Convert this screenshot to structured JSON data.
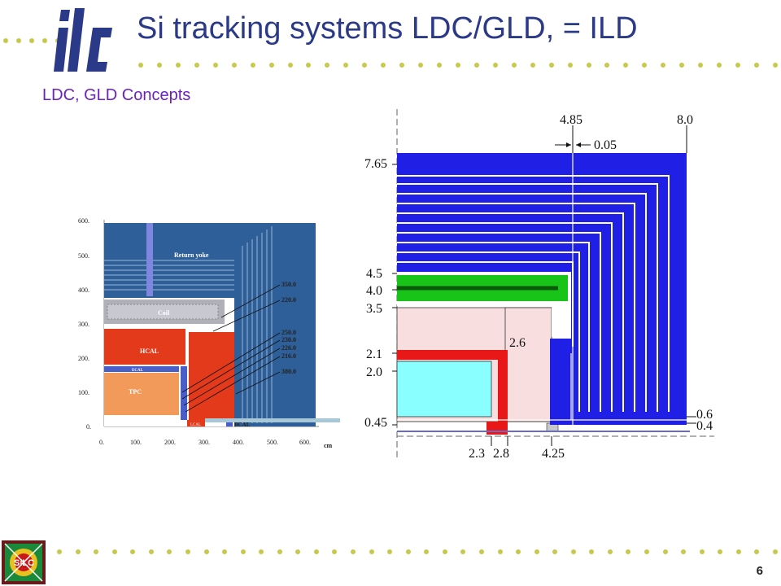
{
  "slide": {
    "title": "Si tracking systems LDC/GLD, = ILD",
    "subtitle": "LDC, GLD Concepts",
    "page_number": "6",
    "logo_text": "ilc",
    "bottom_logo_text": "SiLC"
  },
  "colors": {
    "title": "#2b3a88",
    "subtitle": "#6a22c0",
    "dots": "#c8c84a",
    "yoke": "#2e5f99",
    "hcal": "#e23a1a",
    "tpc": "#f29a5a",
    "ecal": "#4a5ec8",
    "coil": "#b0b0b8",
    "blue_tracker": "#1f1fe6",
    "green_layer": "#19c419",
    "pink_region": "#f8dede",
    "cyan_region": "#8affff",
    "red_support": "#e81818"
  },
  "ldc_diagram": {
    "y_ticks": [
      "600.",
      "500.",
      "400.",
      "300.",
      "200.",
      "100.",
      "0."
    ],
    "x_ticks": [
      "0.",
      "100.",
      "200.",
      "300.",
      "400.",
      "500.",
      "600."
    ],
    "x_unit": "cm",
    "labels": {
      "return_yoke": "Return yoke",
      "coil": "Coil",
      "hcal": "HCAL",
      "ecal": "ECAL",
      "tpc": "TPC",
      "lcal": "LCAL",
      "bcal": "BCAL"
    },
    "radii": [
      "350.0",
      "220.0",
      "250.0",
      "230.0",
      "226.0",
      "216.0",
      "380.0"
    ]
  },
  "gld_diagram": {
    "top_labels": [
      "4.85",
      "8.0",
      "0.05"
    ],
    "left_labels": [
      "7.65",
      "4.5",
      "4.0",
      "3.5",
      "2.1",
      "2.0",
      "0.45"
    ],
    "inner_label": "2.6",
    "right_labels": [
      "0.6",
      "0.4"
    ],
    "bottom_labels": [
      "2.3",
      "2.8",
      "4.25"
    ]
  }
}
